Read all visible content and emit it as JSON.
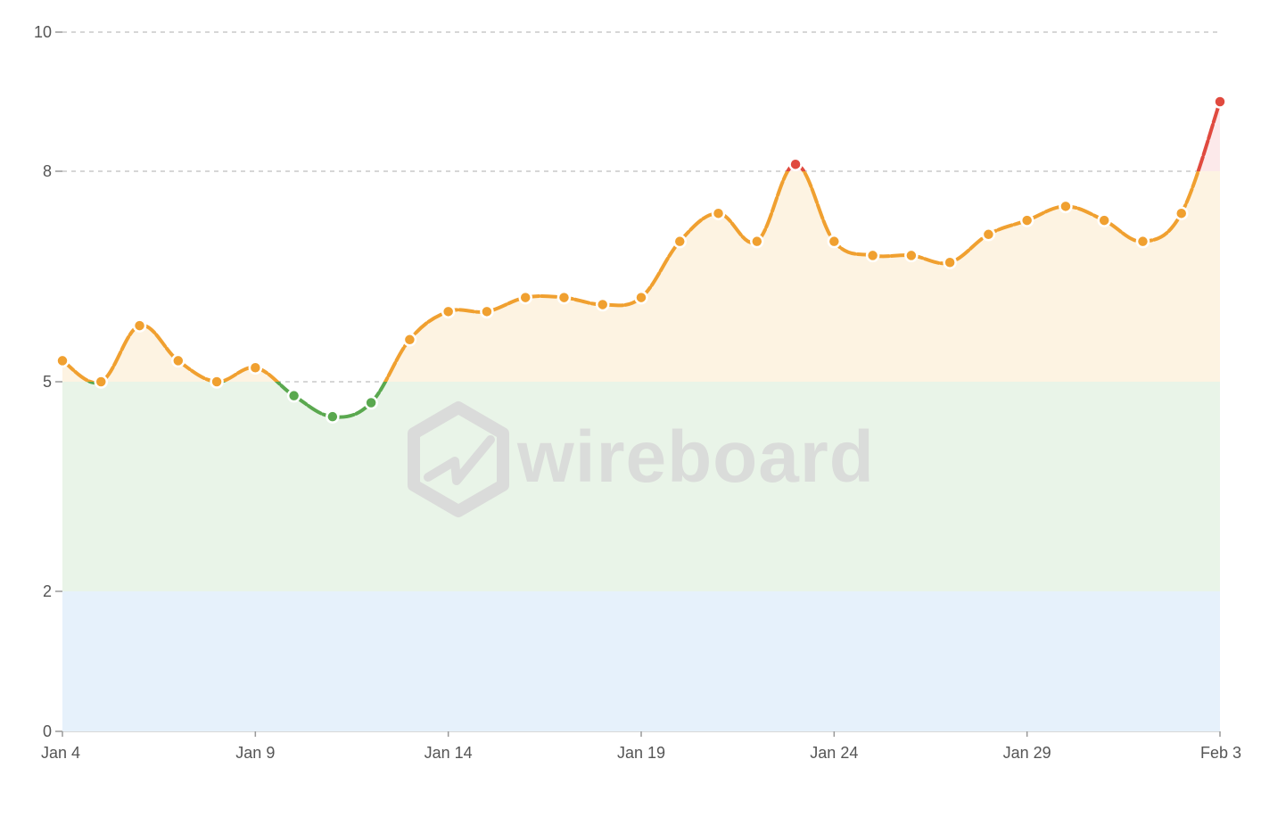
{
  "watermark": {
    "text": "wireboard"
  },
  "chart_data": {
    "type": "line",
    "x_start_date": "Jan 4",
    "x_labels": [
      "Jan 4",
      "Jan 9",
      "Jan 14",
      "Jan 19",
      "Jan 24",
      "Jan 29",
      "Feb 3"
    ],
    "x_ticks": [
      "Jan 4",
      "Jan 9",
      "Jan 14",
      "Jan 19",
      "Jan 24",
      "Jan 29",
      "Feb 3"
    ],
    "y_ticks": [
      0,
      2,
      5,
      8,
      10
    ],
    "ylim": [
      0,
      10
    ],
    "grid": "horizontal dashed",
    "series": [
      {
        "x": [
          "Jan 4",
          "Jan 5",
          "Jan 6",
          "Jan 7",
          "Jan 8",
          "Jan 9",
          "Jan 10",
          "Jan 11",
          "Jan 12",
          "Jan 13",
          "Jan 14",
          "Jan 15",
          "Jan 16",
          "Jan 17",
          "Jan 18",
          "Jan 19",
          "Jan 20",
          "Jan 21",
          "Jan 22",
          "Jan 23",
          "Jan 24",
          "Jan 25",
          "Jan 26",
          "Jan 27",
          "Jan 28",
          "Jan 29",
          "Jan 30",
          "Jan 31",
          "Feb 1",
          "Feb 2",
          "Feb 3"
        ],
        "values": [
          5.3,
          5.0,
          5.8,
          5.3,
          5.0,
          5.2,
          4.8,
          4.5,
          4.7,
          5.6,
          6.0,
          6.0,
          6.2,
          6.2,
          6.1,
          6.2,
          7.0,
          7.4,
          7.0,
          8.1,
          7.0,
          6.8,
          6.8,
          6.7,
          7.1,
          7.3,
          7.5,
          7.3,
          7.0,
          7.4,
          9.0
        ]
      }
    ],
    "bands": [
      {
        "from": 0,
        "to": 2,
        "color": "#e6f1fb"
      },
      {
        "from": 2,
        "to": 5,
        "color": "#e9f4e8"
      },
      {
        "from": 5,
        "to": 8,
        "color": "#fdf3e2"
      },
      {
        "from": 8,
        "to": 10,
        "color": "#fce9ea"
      }
    ],
    "colors": {
      "low": "#5aa84f",
      "mid": "#f0a030",
      "high": "#e04a3f",
      "grid": "#c8c8c8",
      "tick_text": "#555555"
    }
  }
}
